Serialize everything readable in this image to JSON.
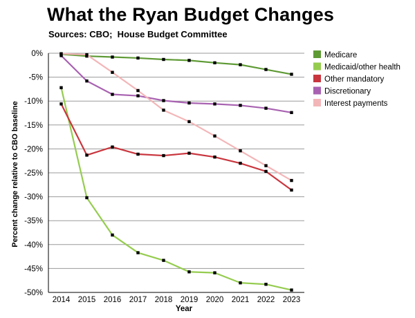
{
  "title": "What the Ryan Budget Changes",
  "subtitle": "Sources: CBO;  House Budget Committee",
  "chart_data": {
    "type": "line",
    "title": "What the Ryan Budget Changes",
    "subtitle": "Sources: CBO;  House Budget Committee",
    "xlabel": "Year",
    "ylabel": "Percent change relative to CBO baseline",
    "x_ticks": [
      "2014",
      "2015",
      "2016",
      "2017",
      "2018",
      "2019",
      "2020",
      "2021",
      "2022",
      "2023"
    ],
    "y_ticks": [
      "0%",
      "-5%",
      "-10%",
      "-15%",
      "-20%",
      "-25%",
      "-30%",
      "-35%",
      "-40%",
      "-45%",
      "-50%"
    ],
    "x": [
      2013.5,
      2014.5,
      2015.5,
      2016.5,
      2017.5,
      2018.5,
      2019.5,
      2020.5,
      2021.5,
      2022.5
    ],
    "xlim": [
      2013,
      2023
    ],
    "ylim": [
      -50,
      0
    ],
    "grid": true,
    "legend_position": "right",
    "series": [
      {
        "name": "Medicare",
        "color": "#5e9a34",
        "values": [
          -0.2,
          -0.6,
          -0.8,
          -1.0,
          -1.3,
          -1.5,
          -2.0,
          -2.4,
          -3.4,
          -4.4
        ]
      },
      {
        "name": "Medicaid/other health",
        "color": "#95cc4f",
        "values": [
          -7.2,
          -30.2,
          -38.0,
          -41.7,
          -43.3,
          -45.7,
          -45.9,
          -48.0,
          -48.3,
          -49.5
        ]
      },
      {
        "name": "Other mandatory",
        "color": "#c9363e",
        "values": [
          -10.6,
          -21.3,
          -19.6,
          -21.1,
          -21.4,
          -20.9,
          -21.7,
          -23.0,
          -24.7,
          -28.6
        ]
      },
      {
        "name": "Discretionary",
        "color": "#a862b1",
        "values": [
          -0.5,
          -5.8,
          -8.6,
          -8.9,
          -9.9,
          -10.4,
          -10.6,
          -10.9,
          -11.5,
          -12.4
        ]
      },
      {
        "name": "Interest payments",
        "color": "#f3b6b8",
        "values": [
          -0.1,
          -0.3,
          -4.0,
          -7.8,
          -11.9,
          -14.3,
          -17.3,
          -20.4,
          -23.5,
          -26.6
        ]
      }
    ]
  }
}
